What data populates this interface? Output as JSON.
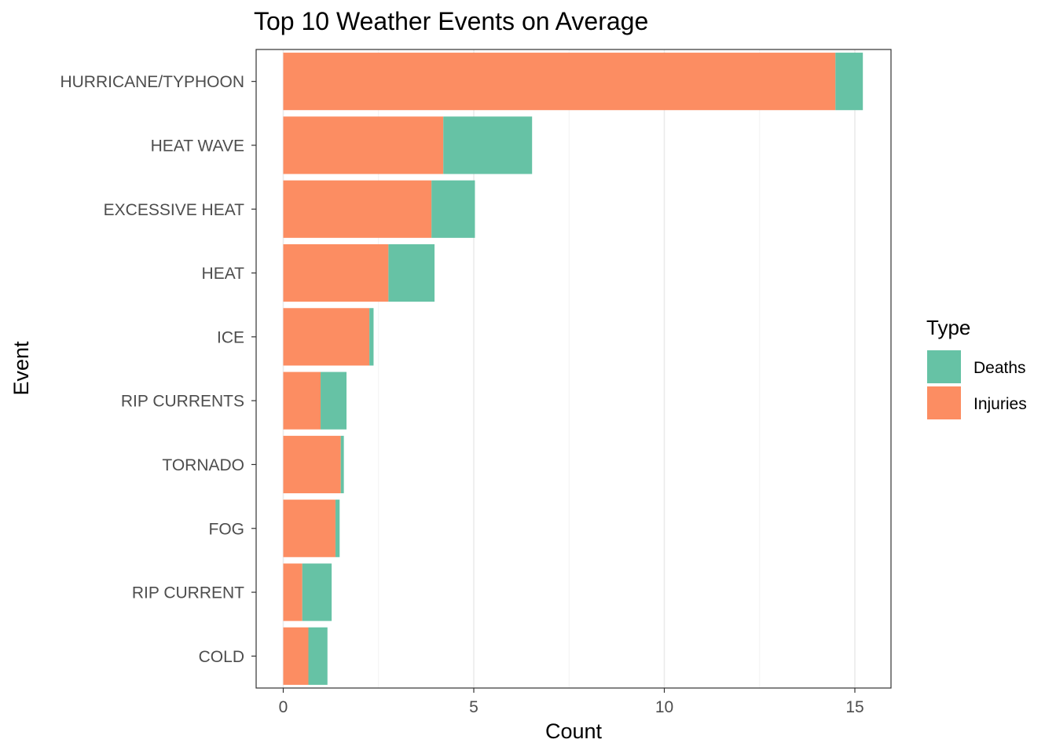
{
  "chart_data": {
    "type": "bar",
    "orientation": "horizontal",
    "stacked": true,
    "title": "Top 10 Weather Events on Average",
    "xlabel": "Count",
    "ylabel": "Event",
    "xlim": [
      -0.7,
      16.0
    ],
    "xticks": [
      0,
      5,
      10,
      15
    ],
    "grid": true,
    "legend_position": "right",
    "legend_title": "Type",
    "categories": [
      "HURRICANE/TYPHOON",
      "HEAT WAVE",
      "EXCESSIVE HEAT",
      "HEAT",
      "ICE",
      "RIP CURRENTS",
      "TORNADO",
      "FOG",
      "RIP CURRENT",
      "COLD"
    ],
    "series": [
      {
        "name": "Injuries",
        "color": "#FC8D62",
        "values": [
          14.49,
          4.2,
          3.89,
          2.76,
          2.26,
          0.98,
          1.51,
          1.37,
          0.5,
          0.66
        ]
      },
      {
        "name": "Deaths",
        "color": "#66C2A5",
        "values": [
          0.72,
          2.33,
          1.14,
          1.21,
          0.11,
          0.68,
          0.08,
          0.11,
          0.77,
          0.5
        ]
      }
    ],
    "legend_order": [
      "Deaths",
      "Injuries"
    ]
  }
}
